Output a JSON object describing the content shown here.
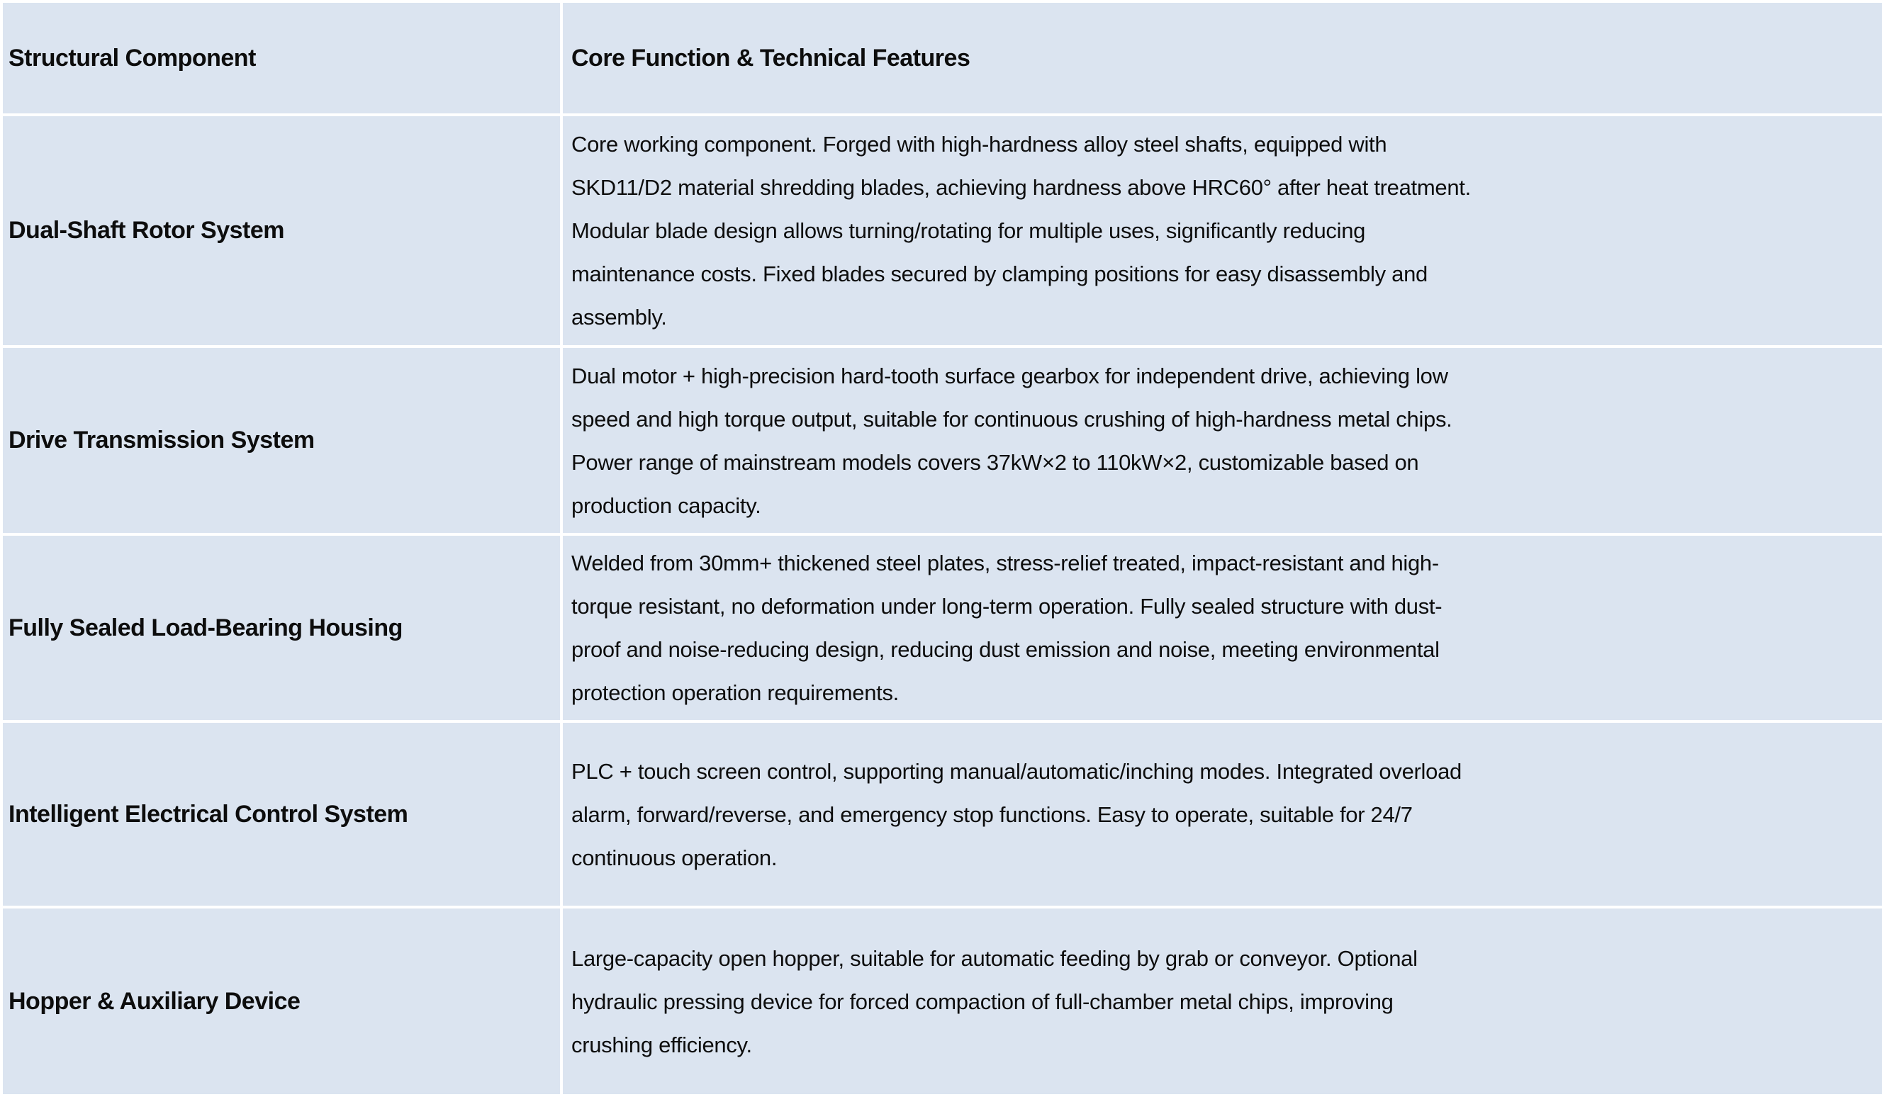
{
  "table": {
    "background_color": "#dbe4f0",
    "gridline_color": "#ffffff",
    "text_color": "#0d0d0d",
    "header": {
      "component": "Structural Component",
      "features": "Core Function & Technical Features"
    },
    "rows": [
      {
        "component": "Dual-Shaft Rotor System",
        "features": "Core working component. Forged with high-hardness alloy steel shafts, equipped with\nSKD11/D2 material shredding blades, achieving hardness above HRC60° after heat treatment.\nModular blade design allows turning/rotating for multiple uses, significantly reducing\nmaintenance costs. Fixed blades secured by clamping positions for easy disassembly and\nassembly."
      },
      {
        "component": "Drive Transmission System",
        "features": "Dual motor + high-precision hard-tooth surface gearbox for independent drive, achieving low\nspeed and high torque output, suitable for continuous crushing of high-hardness metal chips.\nPower range of mainstream models covers 37kW×2 to 110kW×2, customizable based on\nproduction capacity."
      },
      {
        "component": "Fully Sealed Load-Bearing Housing",
        "features": "Welded from 30mm+ thickened steel plates, stress-relief treated, impact-resistant and high-\ntorque resistant, no deformation under long-term operation. Fully sealed structure with dust-\nproof and noise-reducing design, reducing dust emission and noise, meeting environmental\nprotection operation requirements."
      },
      {
        "component": "Intelligent Electrical Control System",
        "features": "PLC + touch screen control, supporting manual/automatic/inching modes. Integrated overload\nalarm, forward/reverse, and emergency stop functions. Easy to operate, suitable for 24/7\ncontinuous operation."
      },
      {
        "component": "Hopper & Auxiliary Device",
        "features": "Large-capacity open hopper, suitable for automatic feeding by grab or conveyor. Optional\nhydraulic pressing device for forced compaction of full-chamber metal chips, improving\ncrushing efficiency."
      }
    ]
  }
}
